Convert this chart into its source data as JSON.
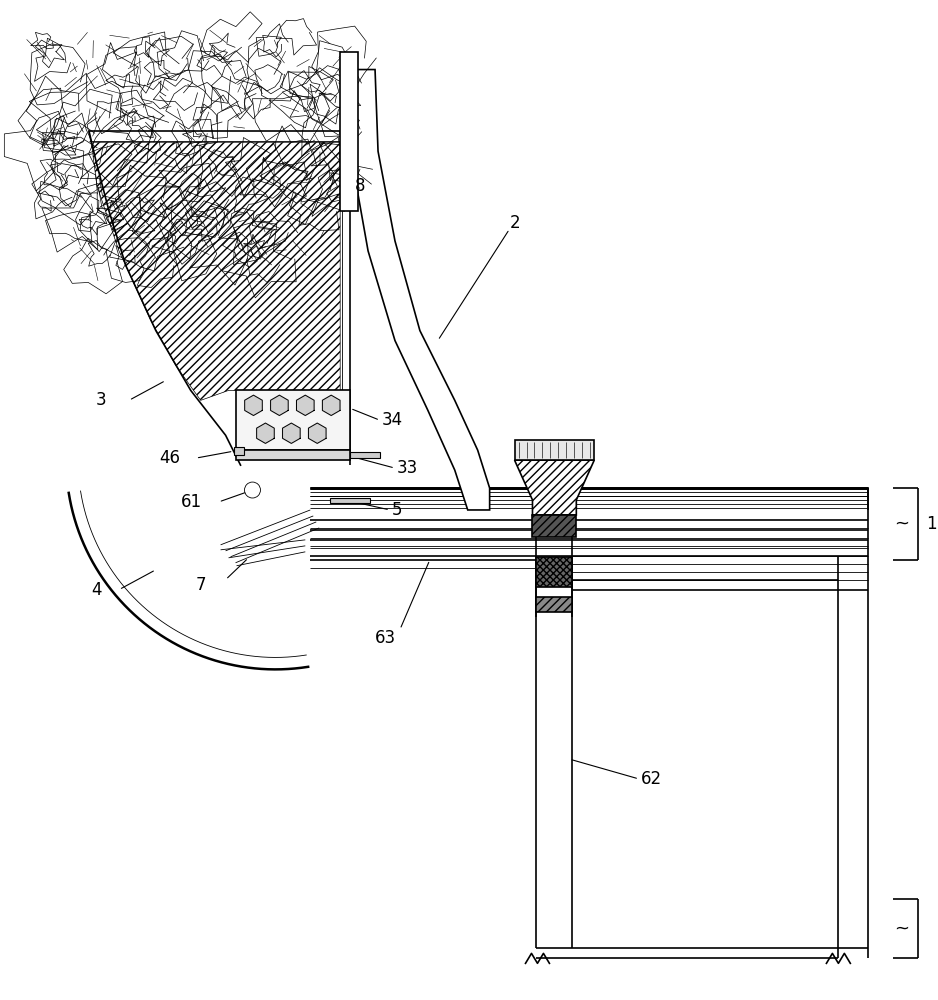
{
  "bg_color": "#ffffff",
  "lc": "#000000",
  "lw_main": 1.2,
  "lw_thin": 0.6,
  "lw_thick": 1.8
}
